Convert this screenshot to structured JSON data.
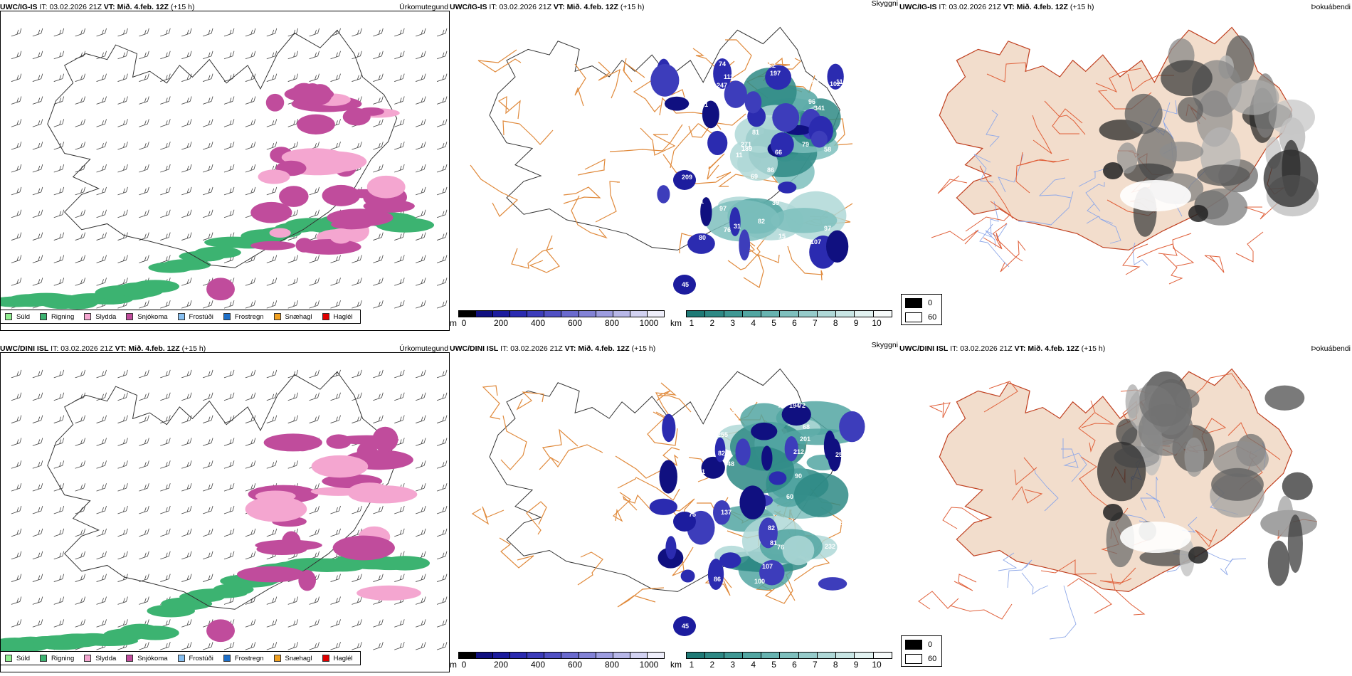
{
  "panels": [
    {
      "model": "UWC/IG-IS",
      "it_label": "IT:",
      "it": "03.02.2026 21Z",
      "vt_label": "VT:",
      "vt": "Mið. 4.feb. 12Z",
      "lead": "(+15 h)",
      "product": "Úrkomutegund"
    },
    {
      "model": "UWC/IG-IS",
      "it_label": "IT:",
      "it": "03.02.2026 21Z",
      "vt_label": "VT:",
      "vt": "Mið. 4.feb. 12Z",
      "lead": "(+15 h)",
      "product": "Skyggni"
    },
    {
      "model": "UWC/IG-IS",
      "it_label": "IT:",
      "it": "03.02.2026 21Z",
      "vt_label": "VT:",
      "vt": "Mið. 4.feb. 12Z",
      "lead": "(+15 h)",
      "product": "Þokuábendi"
    },
    {
      "model": "UWC/DINI ISL",
      "it_label": "IT:",
      "it": "03.02.2026 21Z",
      "vt_label": "VT:",
      "vt": "Mið. 4.feb. 12Z",
      "lead": "(+15 h)",
      "product": "Úrkomutegund"
    },
    {
      "model": "UWC/DINI ISL",
      "it_label": "IT:",
      "it": "03.02.2026 21Z",
      "vt_label": "VT:",
      "vt": "Mið. 4.feb. 12Z",
      "lead": "(+15 h)",
      "product": "Skyggni"
    },
    {
      "model": "UWC/DINI ISL",
      "it_label": "IT:",
      "it": "03.02.2026 21Z",
      "vt_label": "VT:",
      "vt": "Mið. 4.feb. 12Z",
      "lead": "(+15 h)",
      "product": "Þokuábendi"
    }
  ],
  "precip_types": [
    {
      "label": "Súld",
      "color": "#90ee90"
    },
    {
      "label": "Rigning",
      "color": "#3cb371"
    },
    {
      "label": "Slydda",
      "color": "#f4a6d0"
    },
    {
      "label": "Snjókoma",
      "color": "#c04c9c"
    },
    {
      "label": "Frostúði",
      "color": "#87bff0"
    },
    {
      "label": "Frostregn",
      "color": "#1e6fc8"
    },
    {
      "label": "Snæhagl",
      "color": "#f0a020"
    },
    {
      "label": "Haglél",
      "color": "#e00000"
    }
  ],
  "ceiling_scale": {
    "unit": "m",
    "ticks": [
      "0",
      "200",
      "400",
      "600",
      "800",
      "1000"
    ],
    "colors": [
      "#000000",
      "#101080",
      "#1c1c9e",
      "#2b2bb0",
      "#3d3dbb",
      "#5151c4",
      "#6a6acd",
      "#8383d6",
      "#9d9de0",
      "#b7b7e8",
      "#d2d2f1",
      "#eeeefa"
    ]
  },
  "visibility_scale": {
    "unit": "km",
    "ticks": [
      "1",
      "2",
      "3",
      "4",
      "5",
      "6",
      "7",
      "8",
      "9",
      "10"
    ],
    "colors": [
      "#1f7a76",
      "#2e8985",
      "#3f9894",
      "#52a6a2",
      "#67b3b0",
      "#7ebfbd",
      "#96cbca",
      "#afd8d7",
      "#c8e5e4",
      "#e2f2f1",
      "#f7fbfb"
    ]
  },
  "fog_legend": [
    {
      "label": "0",
      "color": "#000000"
    },
    {
      "label": "60",
      "color": "#ffffff"
    }
  ],
  "ceiling_labels_top": [
    "247",
    "58",
    "189",
    "107",
    "101",
    "61",
    "66",
    "76",
    "82",
    "102",
    "96",
    "111",
    "18",
    "114",
    "31",
    "197",
    "80",
    "341",
    "162",
    "15",
    "297",
    "271",
    "79",
    "81",
    "69",
    "97",
    "97",
    "26",
    "11",
    "88",
    "86",
    "60",
    "82",
    "74",
    "39",
    "45",
    "209"
  ],
  "ceiling_labels_bottom": [
    "137",
    "255",
    "83",
    "90",
    "86",
    "72",
    "82",
    "86",
    "126",
    "107",
    "59",
    "48",
    "100",
    "331",
    "75",
    "201",
    "69",
    "212",
    "194",
    "73",
    "81",
    "76",
    "232",
    "257",
    "73",
    "97",
    "82",
    "68",
    "90",
    "72",
    "60",
    "70",
    "45"
  ]
}
